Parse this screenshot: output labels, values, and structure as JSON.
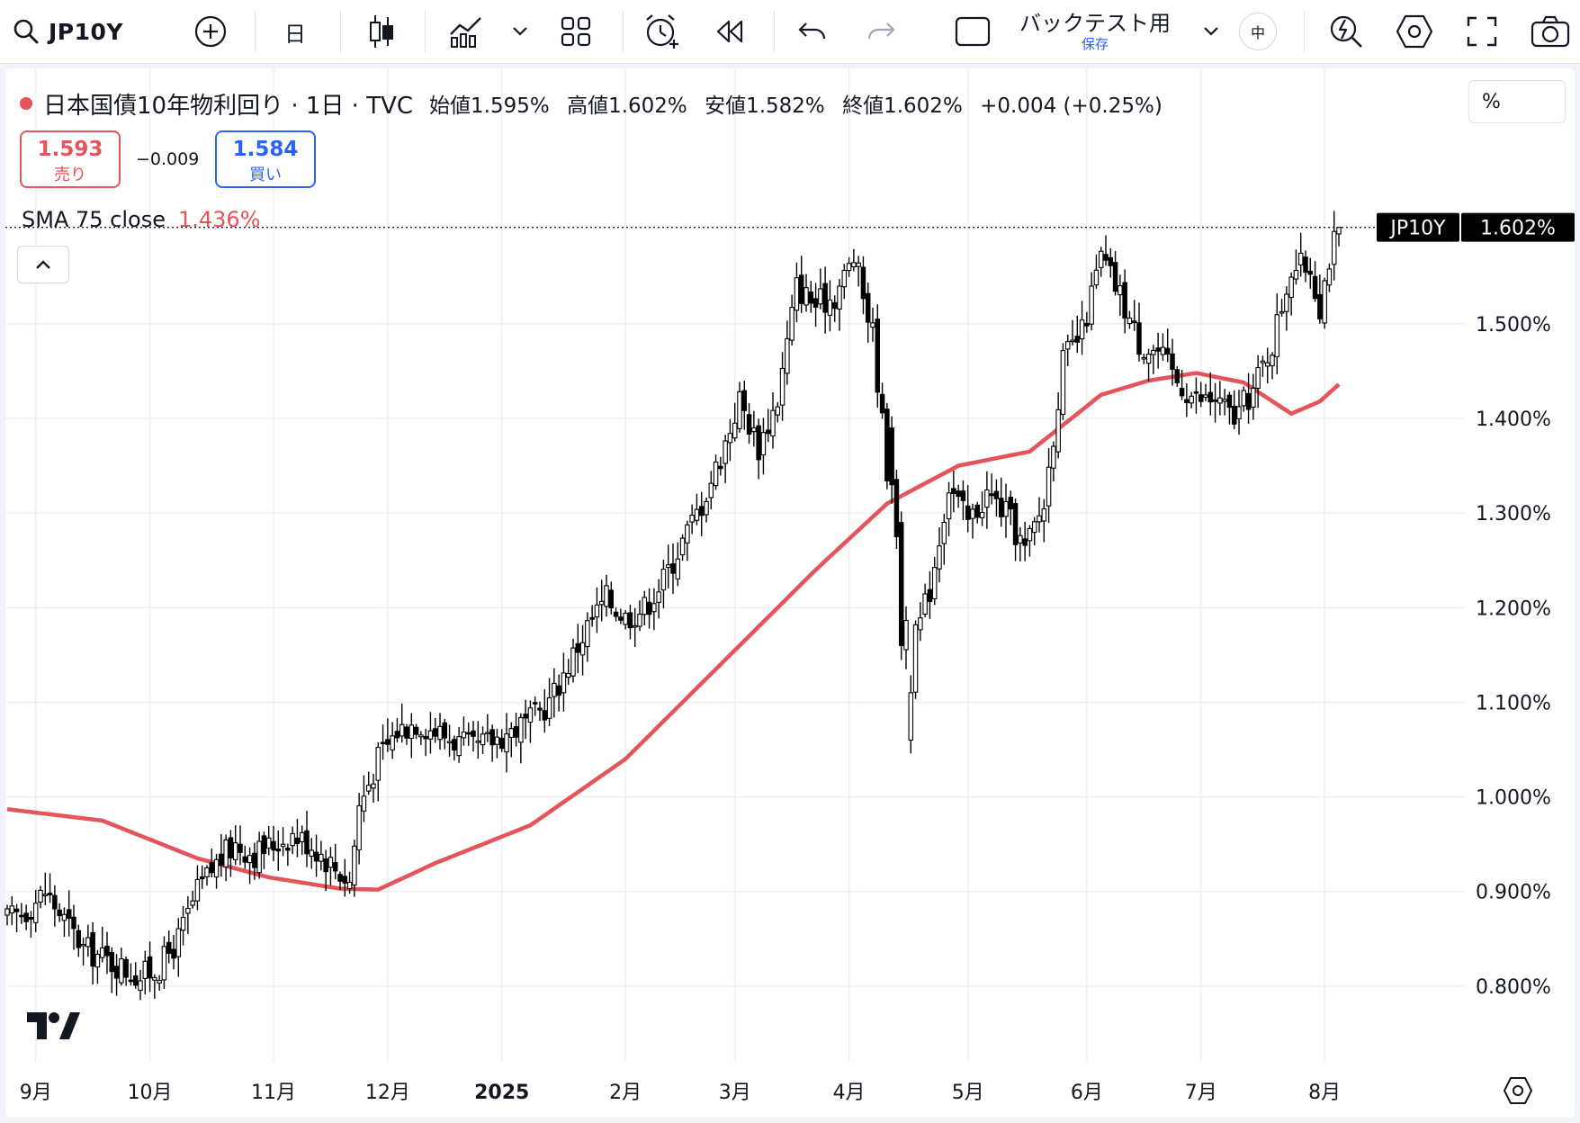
{
  "toolbar": {
    "symbol": "JP10Y",
    "interval": "日",
    "backtest_label": "バックテスト用",
    "save_label": "保存",
    "badge": "中"
  },
  "legend": {
    "title": "日本国債10年物利回り · 1日 · TVC",
    "open": "始値1.595%",
    "high": "高値1.602%",
    "low": "安値1.582%",
    "close": "終値1.602%",
    "change": "+0.004 (+0.25%)",
    "unit_button": "%"
  },
  "trade": {
    "sell_price": "1.593",
    "sell_label": "売り",
    "spread": "−0.009",
    "buy_price": "1.584",
    "buy_label": "買い"
  },
  "indicator": {
    "name": "SMA 75 close",
    "value": "1.436%",
    "color": "#e5535b"
  },
  "colors": {
    "up": "#ffffff",
    "down": "#000000",
    "sma": "#e5535b",
    "sell": "#e5535b",
    "buy": "#2962ff"
  },
  "chart_data": {
    "type": "candlestick",
    "symbol_label": "JP10Y",
    "last_price_label": "1.602%",
    "y_ticks": [
      "1.500%",
      "1.400%",
      "1.300%",
      "1.200%",
      "1.100%",
      "1.000%",
      "0.900%",
      "0.800%"
    ],
    "y_tick_values": [
      1.5,
      1.4,
      1.3,
      1.2,
      1.1,
      1.0,
      0.9,
      0.8
    ],
    "x_ticks": [
      "9月",
      "10月",
      "11月",
      "12月",
      "2025",
      "2月",
      "3月",
      "4月",
      "5月",
      "6月",
      "7月",
      "8月"
    ],
    "ylim": [
      0.72,
      1.77
    ],
    "last_price": 1.602,
    "grid": true,
    "series": [
      {
        "name": "JP10Y",
        "kind": "ohlc",
        "x_range": [
          "2024-08-26",
          "2025-07-25"
        ],
        "close_path": [
          [
            0,
            0.87
          ],
          [
            4,
            0.88
          ],
          [
            8,
            0.9
          ],
          [
            12,
            0.87
          ],
          [
            16,
            0.84
          ],
          [
            20,
            0.83
          ],
          [
            24,
            0.82
          ],
          [
            28,
            0.81
          ],
          [
            32,
            0.82
          ],
          [
            36,
            0.85
          ],
          [
            40,
            0.9
          ],
          [
            44,
            0.93
          ],
          [
            48,
            0.95
          ],
          [
            52,
            0.94
          ],
          [
            56,
            0.95
          ],
          [
            60,
            0.96
          ],
          [
            64,
            0.95
          ],
          [
            68,
            0.93
          ],
          [
            72,
            0.91
          ],
          [
            74,
            0.99
          ],
          [
            78,
            1.04
          ],
          [
            82,
            1.07
          ],
          [
            86,
            1.08
          ],
          [
            90,
            1.07
          ],
          [
            94,
            1.06
          ],
          [
            98,
            1.05
          ],
          [
            102,
            1.06
          ],
          [
            106,
            1.07
          ],
          [
            110,
            1.08
          ],
          [
            114,
            1.1
          ],
          [
            118,
            1.14
          ],
          [
            122,
            1.18
          ],
          [
            126,
            1.21
          ],
          [
            130,
            1.19
          ],
          [
            134,
            1.2
          ],
          [
            138,
            1.23
          ],
          [
            142,
            1.27
          ],
          [
            146,
            1.31
          ],
          [
            150,
            1.36
          ],
          [
            154,
            1.42
          ],
          [
            158,
            1.37
          ],
          [
            162,
            1.42
          ],
          [
            166,
            1.54
          ],
          [
            170,
            1.52
          ],
          [
            174,
            1.53
          ],
          [
            178,
            1.57
          ],
          [
            182,
            1.49
          ],
          [
            186,
            1.3
          ],
          [
            190,
            1.15
          ],
          [
            194,
            1.22
          ],
          [
            198,
            1.33
          ],
          [
            202,
            1.29
          ],
          [
            206,
            1.32
          ],
          [
            210,
            1.3
          ],
          [
            214,
            1.26
          ],
          [
            218,
            1.31
          ],
          [
            222,
            1.46
          ],
          [
            226,
            1.49
          ],
          [
            230,
            1.57
          ],
          [
            234,
            1.53
          ],
          [
            238,
            1.48
          ],
          [
            242,
            1.47
          ],
          [
            246,
            1.44
          ],
          [
            250,
            1.42
          ],
          [
            254,
            1.42
          ],
          [
            258,
            1.4
          ],
          [
            262,
            1.43
          ],
          [
            266,
            1.48
          ],
          [
            270,
            1.56
          ],
          [
            274,
            1.56
          ],
          [
            276,
            1.52
          ],
          [
            278,
            1.57
          ],
          [
            280,
            1.602
          ]
        ]
      },
      {
        "name": "SMA 75 close",
        "kind": "line",
        "values": [
          [
            0,
            0.987
          ],
          [
            20,
            0.975
          ],
          [
            40,
            0.935
          ],
          [
            55,
            0.915
          ],
          [
            70,
            0.903
          ],
          [
            78,
            0.902
          ],
          [
            90,
            0.93
          ],
          [
            110,
            0.97
          ],
          [
            130,
            1.04
          ],
          [
            150,
            1.14
          ],
          [
            170,
            1.24
          ],
          [
            185,
            1.31
          ],
          [
            200,
            1.35
          ],
          [
            215,
            1.365
          ],
          [
            230,
            1.425
          ],
          [
            240,
            1.44
          ],
          [
            250,
            1.448
          ],
          [
            260,
            1.438
          ],
          [
            270,
            1.405
          ],
          [
            276,
            1.418
          ],
          [
            280,
            1.436
          ]
        ]
      }
    ]
  }
}
